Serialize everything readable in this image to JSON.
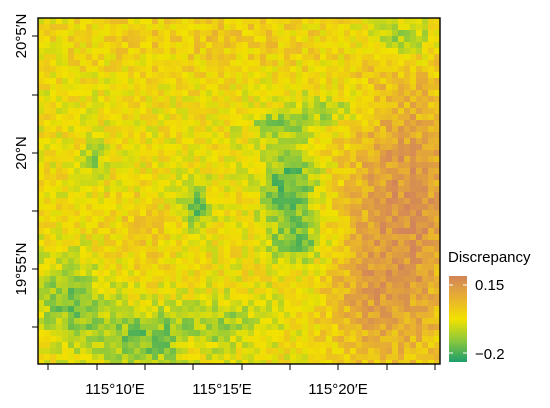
{
  "map": {
    "type": "heatmap",
    "legend": {
      "title": "Discrepancy",
      "max_label": "0.15",
      "min_label": "−0.2",
      "max_value": 0.15,
      "min_value": -0.2,
      "colors": [
        "#1e9e6c",
        "#8cc83c",
        "#f2e200",
        "#e8b030",
        "#d2845a"
      ]
    },
    "x_ticks": [
      "115°10′E",
      "115°15′E",
      "115°20′E"
    ],
    "y_ticks": [
      "20°5′N",
      "20°N",
      "19°55′N"
    ],
    "x_tick_values": [
      115.1667,
      115.25,
      115.3333
    ],
    "y_tick_values": [
      20.0833,
      20.0,
      19.9167
    ],
    "lon_range": [
      115.1,
      115.41
    ],
    "lat_range": [
      19.863,
      20.097
    ],
    "grid": false,
    "legend_position": "right"
  }
}
